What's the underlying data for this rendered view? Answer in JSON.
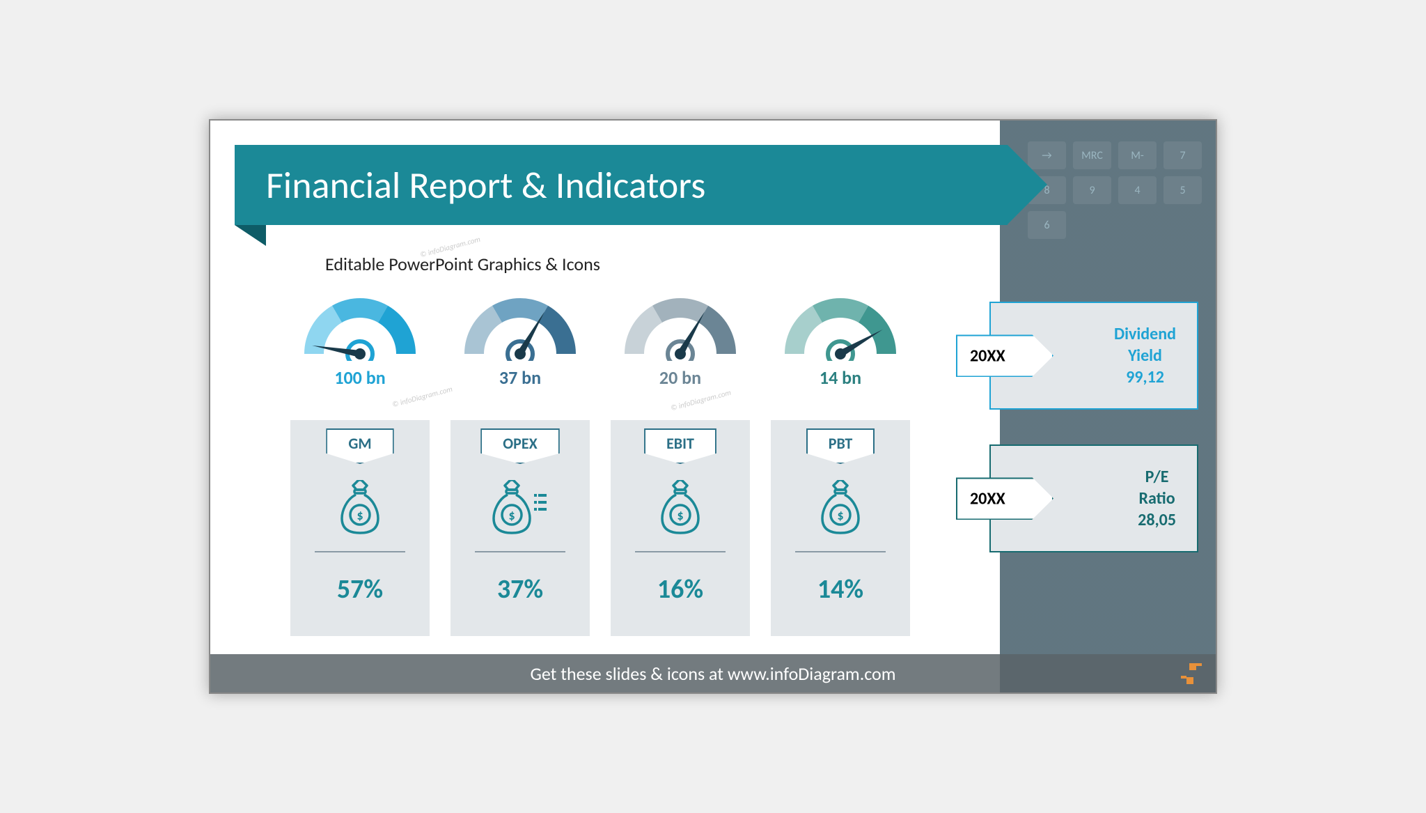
{
  "title": "Financial Report & Indicators",
  "subtitle": "Editable PowerPoint Graphics & Icons",
  "colors": {
    "ribbon": "#1b8997",
    "ribbon_fold": "#0e5c67",
    "card_bg": "#e3e7ea",
    "sidebar_bg": "#1a3a4a",
    "footer_bg": "rgba(90,100,105,0.85)",
    "accent_orange": "#e8913a",
    "needle": "#1a3a4a"
  },
  "gauges": [
    {
      "value_label": "100 bn",
      "label_color": "#1fa3d4",
      "segments": [
        "#8fd6f0",
        "#4ab7e0",
        "#1fa3d4"
      ],
      "needle_angle": 170
    },
    {
      "value_label": "37 bn",
      "label_color": "#3a6f92",
      "segments": [
        "#a9c4d4",
        "#6fa3c2",
        "#3a6f92"
      ],
      "needle_angle": 60
    },
    {
      "value_label": "20 bn",
      "label_color": "#6b8595",
      "segments": [
        "#c8d2d8",
        "#a2b2bc",
        "#6b8595"
      ],
      "needle_angle": 60
    },
    {
      "value_label": "14 bn",
      "label_color": "#2b8080",
      "segments": [
        "#a7cfcc",
        "#6fb3ad",
        "#3f9790"
      ],
      "needle_angle": 30
    }
  ],
  "metric_cards": [
    {
      "tab": "GM",
      "percent": "57%",
      "percent_color": "#1b8997",
      "icon": "money-bag-dollar"
    },
    {
      "tab": "OPEX",
      "percent": "37%",
      "percent_color": "#1b8997",
      "icon": "money-bag-list"
    },
    {
      "tab": "EBIT",
      "percent": "16%",
      "percent_color": "#1b8997",
      "icon": "money-bag-dollar"
    },
    {
      "tab": "PBT",
      "percent": "14%",
      "percent_color": "#1b8997",
      "icon": "money-bag-dollar"
    }
  ],
  "side_cards": [
    {
      "year": "20XX",
      "border_color": "#1fa3d4",
      "title": "Dividend Yield",
      "value": "99,12",
      "text_color": "#1fa3d4"
    },
    {
      "year": "20XX",
      "border_color": "#176b70",
      "title": "P/E Ratio",
      "value": "28,05",
      "text_color": "#176b70"
    }
  ],
  "footer": "Get these slides & icons at www.infoDiagram.com",
  "calc_keys": [
    "→",
    "MRC",
    "M-",
    "7",
    "8",
    "9",
    "4",
    "5",
    "6"
  ],
  "watermark": "© infoDiagram.com"
}
